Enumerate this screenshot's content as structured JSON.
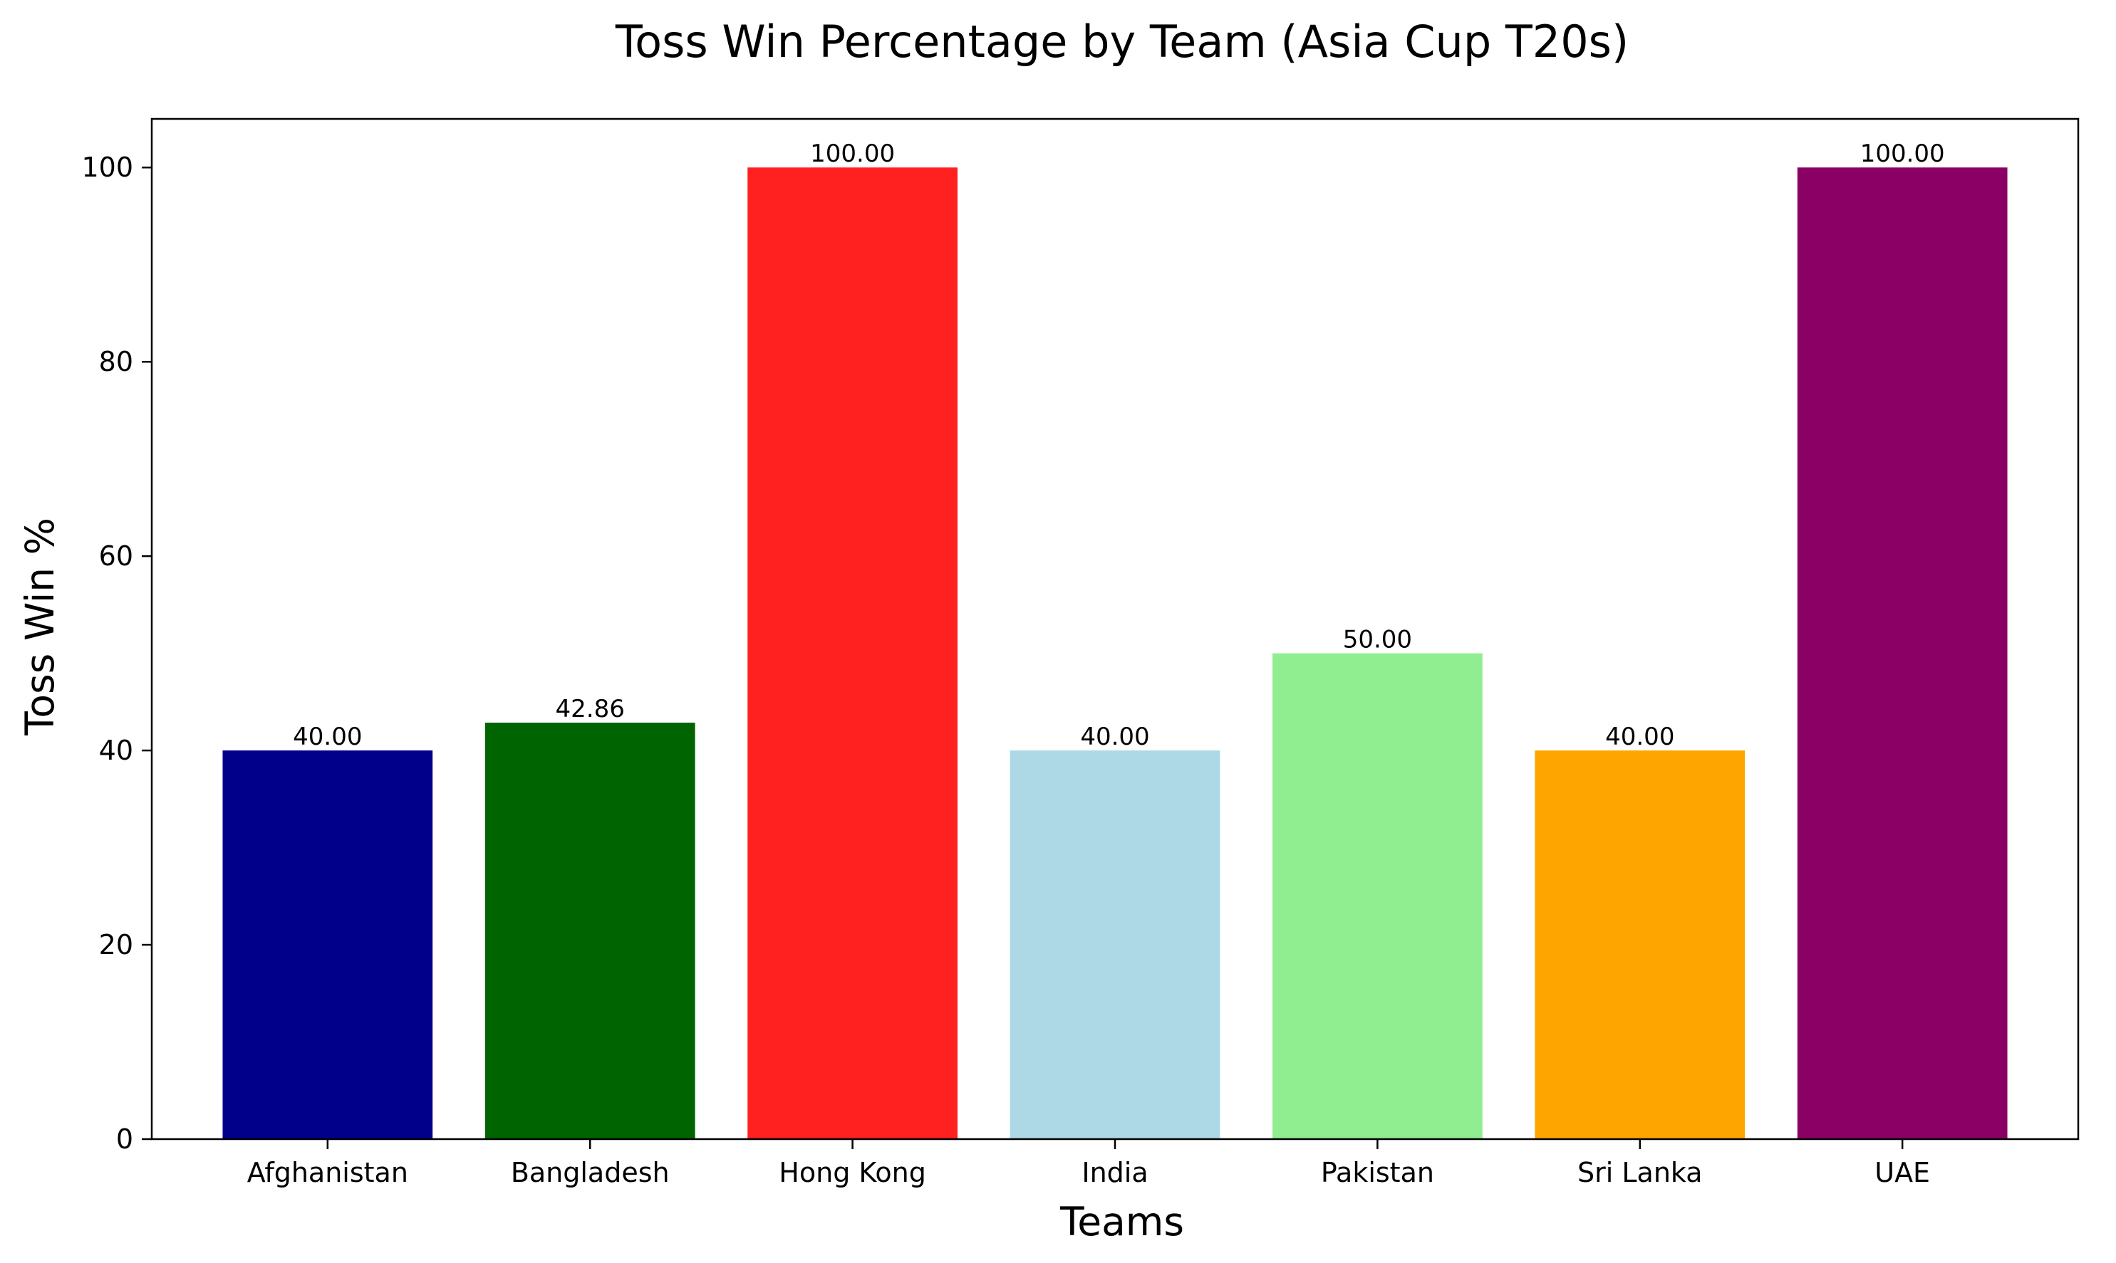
{
  "chart_data": {
    "type": "bar",
    "title": "Toss Win Percentage by Team (Asia Cup T20s)",
    "xlabel": "Teams",
    "ylabel": "Toss Win %",
    "categories": [
      "Afghanistan",
      "Bangladesh",
      "Hong Kong",
      "India",
      "Pakistan",
      "Sri Lanka",
      "UAE"
    ],
    "values": [
      40.0,
      42.86,
      100.0,
      40.0,
      50.0,
      40.0,
      100.0
    ],
    "value_labels": [
      "40.00",
      "42.86",
      "100.00",
      "40.00",
      "50.00",
      "40.00",
      "100.00"
    ],
    "colors": [
      "#00008b",
      "#006400",
      "#ff2020",
      "#add8e6",
      "#90ee90",
      "#ffa500",
      "#8b0064"
    ],
    "ylim": [
      0,
      105
    ],
    "yticks": [
      0,
      20,
      40,
      60,
      80,
      100
    ],
    "grid": false,
    "legend": "none"
  }
}
